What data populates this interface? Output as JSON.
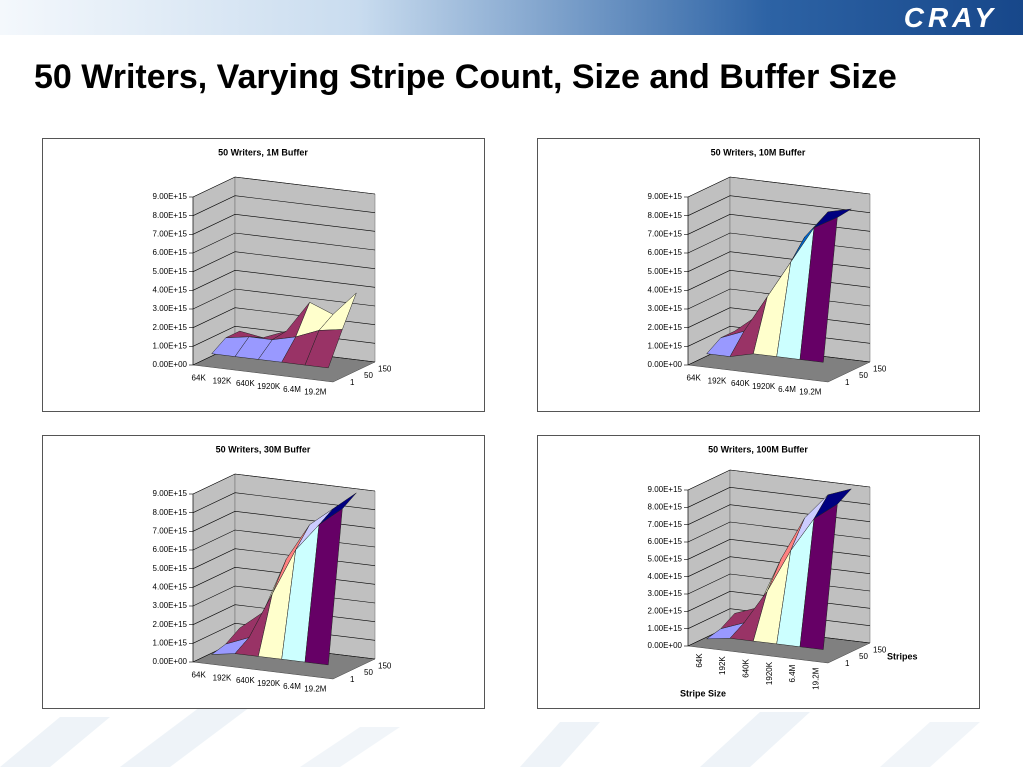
{
  "title": "50 Writers, Varying Stripe Count, Size and Buffer Size",
  "logo": "CRAY",
  "chart_data": [
    {
      "type": "surface",
      "title": "50 Writers, 1M Buffer",
      "categories": [
        "64K",
        "192K",
        "640K",
        "1920K",
        "6.4M",
        "19.2M"
      ],
      "series": [
        {
          "name": "1",
          "values": [
            500000000000000.0,
            500000000000000.0,
            500000000000000.0,
            500000000000000.0,
            500000000000000.0,
            500000000000000.0
          ]
        },
        {
          "name": "50",
          "values": [
            1000000000000000.0,
            1200000000000000.0,
            1200000000000000.0,
            1500000000000000.0,
            2000000000000000.0,
            2200000000000000.0
          ]
        },
        {
          "name": "150",
          "values": [
            1000000000000000.0,
            800000000000000.0,
            1300000000000000.0,
            3000000000000000.0,
            2500000000000000.0,
            3800000000000000.0
          ]
        }
      ],
      "ylim": [
        0,
        9000000000000000.0
      ],
      "yticks": [
        {
          "value": 0,
          "label": "0.00E+00"
        },
        {
          "value": 1000000000000000.0,
          "label": "1.00E+15"
        },
        {
          "value": 2000000000000000.0,
          "label": "2.00E+15"
        },
        {
          "value": 3000000000000000.0,
          "label": "3.00E+15"
        },
        {
          "value": 4000000000000000.0,
          "label": "4.00E+15"
        },
        {
          "value": 5000000000000000.0,
          "label": "5.00E+15"
        },
        {
          "value": 6000000000000000.0,
          "label": "6.00E+15"
        },
        {
          "value": 7000000000000000.0,
          "label": "7.00E+15"
        },
        {
          "value": 8000000000000000.0,
          "label": "8.00E+15"
        },
        {
          "value": 9000000000000000.0,
          "label": "9.00E+15"
        }
      ],
      "colors": [
        "#9999ff",
        "#993366",
        "#ffffcc",
        "#ccffff",
        "#660066",
        "#ff8080",
        "#0066cc",
        "#ccccff",
        "#000080"
      ],
      "grid": true
    },
    {
      "type": "surface",
      "title": "50 Writers, 10M Buffer",
      "categories": [
        "64K",
        "192K",
        "640K",
        "1920K",
        "6.4M",
        "19.2M"
      ],
      "series": [
        {
          "name": "1",
          "values": [
            500000000000000.0,
            500000000000000.0,
            800000000000000.0,
            800000000000000.0,
            800000000000000.0,
            800000000000000.0
          ]
        },
        {
          "name": "50",
          "values": [
            1000000000000000.0,
            1500000000000000.0,
            3500000000000000.0,
            5500000000000000.0,
            7500000000000000.0,
            8200000000000000.0
          ]
        },
        {
          "name": "150",
          "values": [
            1000000000000000.0,
            2000000000000000.0,
            4000000000000000.0,
            6500000000000000.0,
            8000000000000000.0,
            8300000000000000.0
          ]
        }
      ],
      "ylim": [
        0,
        9000000000000000.0
      ],
      "yticks": [
        {
          "value": 0,
          "label": "0.00E+00"
        },
        {
          "value": 1000000000000000.0,
          "label": "1.00E+15"
        },
        {
          "value": 2000000000000000.0,
          "label": "2.00E+15"
        },
        {
          "value": 3000000000000000.0,
          "label": "3.00E+15"
        },
        {
          "value": 4000000000000000.0,
          "label": "4.00E+15"
        },
        {
          "value": 5000000000000000.0,
          "label": "5.00E+15"
        },
        {
          "value": 6000000000000000.0,
          "label": "6.00E+15"
        },
        {
          "value": 7000000000000000.0,
          "label": "7.00E+15"
        },
        {
          "value": 8000000000000000.0,
          "label": "8.00E+15"
        },
        {
          "value": 9000000000000000.0,
          "label": "9.00E+15"
        }
      ],
      "colors": [
        "#9999ff",
        "#993366",
        "#ffffcc",
        "#ccffff",
        "#660066",
        "#ff8080",
        "#0066cc",
        "#ccccff",
        "#000080"
      ],
      "grid": true
    },
    {
      "type": "surface",
      "title": "50 Writers, 30M Buffer",
      "categories": [
        "64K",
        "192K",
        "640K",
        "1920K",
        "6.4M",
        "19.2M"
      ],
      "series": [
        {
          "name": "1",
          "values": [
            300000000000000.0,
            500000000000000.0,
            500000000000000.0,
            500000000000000.0,
            500000000000000.0,
            500000000000000.0
          ]
        },
        {
          "name": "50",
          "values": [
            500000000000000.0,
            1000000000000000.0,
            3500000000000000.0,
            6000000000000000.0,
            7500000000000000.0,
            8500000000000000.0
          ]
        },
        {
          "name": "150",
          "values": [
            1000000000000000.0,
            2000000000000000.0,
            5000000000000000.0,
            7000000000000000.0,
            8000000000000000.0,
            9000000000000000.0
          ]
        }
      ],
      "ylim": [
        0,
        9000000000000000.0
      ],
      "yticks": [
        {
          "value": 0,
          "label": "0.00E+00"
        },
        {
          "value": 1000000000000000.0,
          "label": "1.00E+15"
        },
        {
          "value": 2000000000000000.0,
          "label": "2.00E+15"
        },
        {
          "value": 3000000000000000.0,
          "label": "3.00E+15"
        },
        {
          "value": 4000000000000000.0,
          "label": "4.00E+15"
        },
        {
          "value": 5000000000000000.0,
          "label": "5.00E+15"
        },
        {
          "value": 6000000000000000.0,
          "label": "6.00E+15"
        },
        {
          "value": 7000000000000000.0,
          "label": "7.00E+15"
        },
        {
          "value": 8000000000000000.0,
          "label": "8.00E+15"
        },
        {
          "value": 9000000000000000.0,
          "label": "9.00E+15"
        }
      ],
      "colors": [
        "#9999ff",
        "#993366",
        "#ffffcc",
        "#ccffff",
        "#660066",
        "#ff8080",
        "#0066cc",
        "#ccccff",
        "#000080"
      ],
      "grid": true
    },
    {
      "type": "surface",
      "title": "50 Writers, 100M Buffer",
      "xlabel": "Stripe Size",
      "zlabel": "Stripes",
      "xtick_rotation": -90,
      "categories": [
        "64K",
        "192K",
        "640K",
        "1920K",
        "6.4M",
        "19.2M"
      ],
      "series": [
        {
          "name": "1",
          "values": [
            300000000000000.0,
            500000000000000.0,
            500000000000000.0,
            500000000000000.0,
            500000000000000.0,
            500000000000000.0
          ]
        },
        {
          "name": "50",
          "values": [
            500000000000000.0,
            1000000000000000.0,
            3000000000000000.0,
            5500000000000000.0,
            7500000000000000.0,
            8500000000000000.0
          ]
        },
        {
          "name": "150",
          "values": [
            1000000000000000.0,
            1500000000000000.0,
            4500000000000000.0,
            7000000000000000.0,
            8500000000000000.0,
            9000000000000000.0
          ]
        }
      ],
      "ylim": [
        0,
        9000000000000000.0
      ],
      "yticks": [
        {
          "value": 0,
          "label": "0.00E+00"
        },
        {
          "value": 1000000000000000.0,
          "label": "1.00E+15"
        },
        {
          "value": 2000000000000000.0,
          "label": "2.00E+15"
        },
        {
          "value": 3000000000000000.0,
          "label": "3.00E+15"
        },
        {
          "value": 4000000000000000.0,
          "label": "4.00E+15"
        },
        {
          "value": 5000000000000000.0,
          "label": "5.00E+15"
        },
        {
          "value": 6000000000000000.0,
          "label": "6.00E+15"
        },
        {
          "value": 7000000000000000.0,
          "label": "7.00E+15"
        },
        {
          "value": 8000000000000000.0,
          "label": "8.00E+15"
        },
        {
          "value": 9000000000000000.0,
          "label": "9.00E+15"
        }
      ],
      "colors": [
        "#9999ff",
        "#993366",
        "#ffffcc",
        "#ccffff",
        "#660066",
        "#ff8080",
        "#0066cc",
        "#ccccff",
        "#000080"
      ],
      "grid": true
    }
  ]
}
